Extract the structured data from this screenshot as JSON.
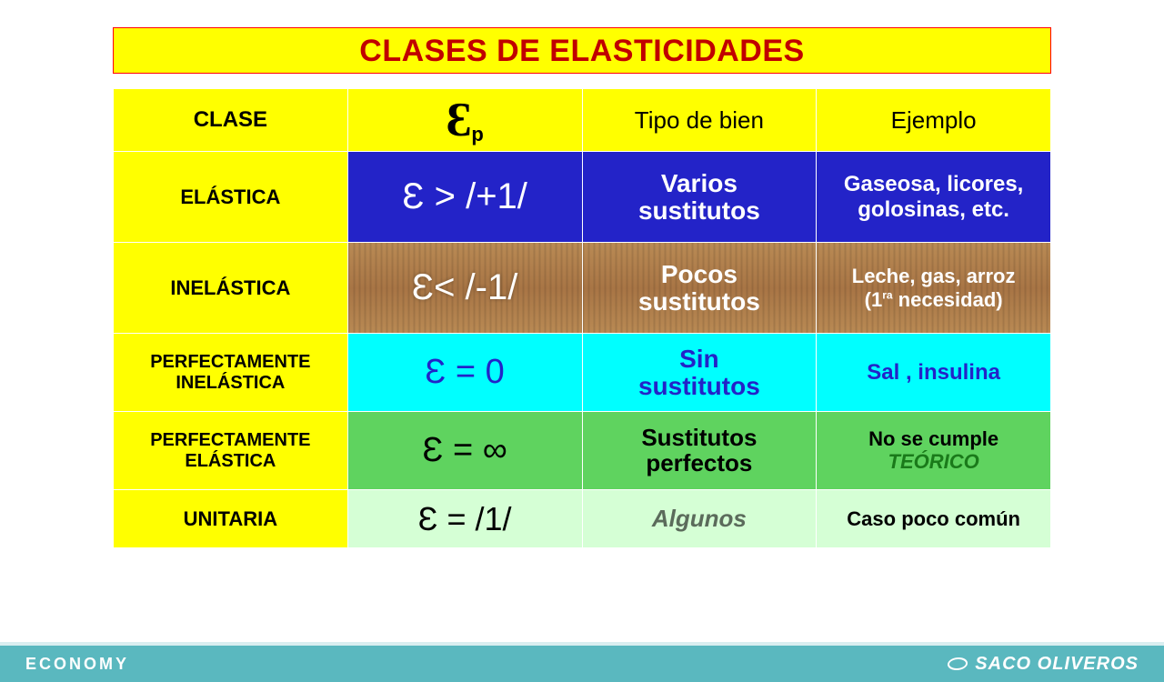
{
  "title": "CLASES DE ELASTICIDADES",
  "headers": {
    "c1": "CLASE",
    "c2_symbol": "Ɛ",
    "c2_sub": "p",
    "c3": "Tipo de bien",
    "c4": "Ejemplo"
  },
  "rows": {
    "r1": {
      "clase": "ELÁSTICA",
      "eps": "Ɛ  > /+1/",
      "tipo_l1": "Varios",
      "tipo_l2": "sustitutos",
      "ej_l1": "Gaseosa, licores,",
      "ej_l2": "golosinas, etc."
    },
    "r2": {
      "clase": "INELÁSTICA",
      "eps": "Ɛ< /-1/",
      "tipo_l1": "Pocos",
      "tipo_l2": "sustitutos",
      "ej_l1": "Leche, gas, arroz",
      "ej_l2a": "(1",
      "ej_l2sup": "ra",
      "ej_l2b": " necesidad)"
    },
    "r3": {
      "clase_l1": "PERFECTAMENTE",
      "clase_l2": "INELÁSTICA",
      "eps": "Ɛ  = 0",
      "tipo_l1": "Sin",
      "tipo_l2": "sustitutos",
      "ej": "Sal , insulina"
    },
    "r4": {
      "clase_l1": "PERFECTAMENTE",
      "clase_l2": "ELÁSTICA",
      "eps": "Ɛ  = ∞",
      "tipo_l1": "Sustitutos",
      "tipo_l2": "perfectos",
      "ej_l1": "No se cumple",
      "ej_l2": "TEÓRICO"
    },
    "r5": {
      "clase": "UNITARIA",
      "eps": "Ɛ  = /1/",
      "tipo": "Algunos",
      "ej": "Caso poco común"
    }
  },
  "footer": {
    "left": "ECONOMY",
    "right": "SACO OLIVEROS"
  },
  "colors": {
    "yellow": "#ffff00",
    "title_red": "#c00000",
    "blue_bg": "#2323c8",
    "cyan_bg": "#00ffff",
    "green_bg": "#5fd35f",
    "pale_green_bg": "#d5ffd5",
    "footer_bg": "#5ab8bf",
    "wood_base": "#b98a54"
  }
}
